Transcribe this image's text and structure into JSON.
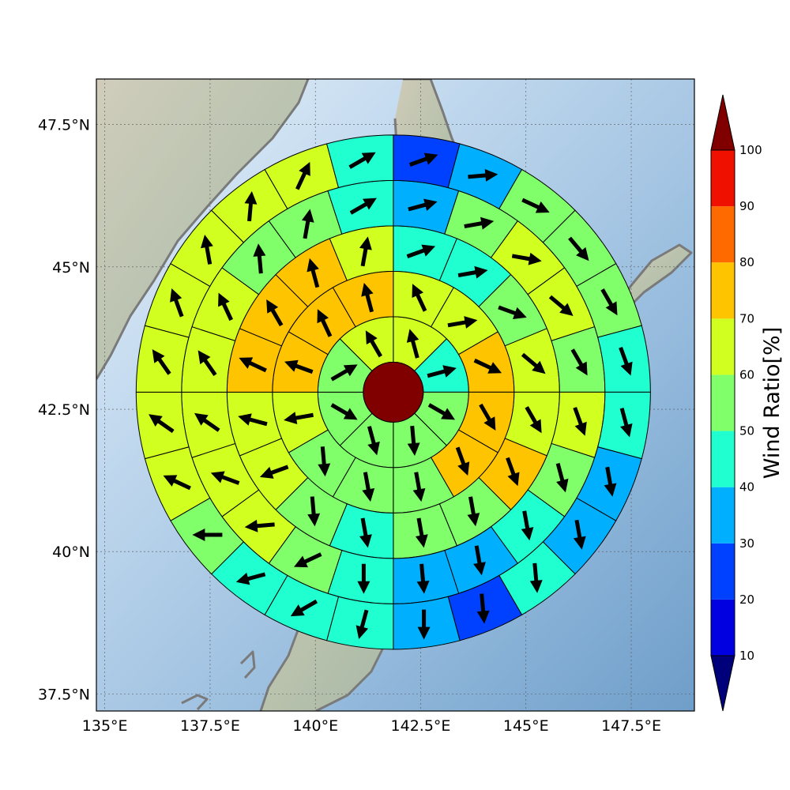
{
  "map": {
    "lon_ticks": [
      "135°E",
      "137.5°E",
      "140°E",
      "142.5°E",
      "145°E",
      "147.5°E"
    ],
    "lat_ticks": [
      "47.5°N",
      "45°N",
      "42.5°N",
      "40°N",
      "37.5°N"
    ],
    "lon_values": [
      135,
      137.5,
      140,
      142.5,
      145,
      147.5
    ],
    "lat_values": [
      47.5,
      45,
      42.5,
      40,
      37.5
    ],
    "extent": {
      "lon": [
        134.8,
        149.0
      ],
      "lat": [
        37.2,
        48.3
      ]
    },
    "center": {
      "lon": 141.85,
      "lat": 42.8
    }
  },
  "colorbar": {
    "label": "Wind Ratio[%]",
    "tick_labels": [
      "10",
      "20",
      "30",
      "40",
      "50",
      "60",
      "70",
      "80",
      "90",
      "100"
    ],
    "levels": [
      10,
      20,
      30,
      40,
      50,
      60,
      70,
      80,
      90,
      100
    ],
    "colors": [
      "#0000e0",
      "#0040ff",
      "#00b0ff",
      "#20ffd0",
      "#80ff6a",
      "#d0ff20",
      "#ffc400",
      "#ff6a00",
      "#f01000"
    ],
    "under_color": "#00007a",
    "over_color": "#800000"
  },
  "chart_data": {
    "type": "polar-sector-plot",
    "center_value_color": "#800000",
    "rings": [
      {
        "sectors": 8,
        "ratio_class": [
          60,
          40,
          50,
          50,
          50,
          50,
          50,
          60
        ],
        "wind_dir_deg": [
          -15,
          75,
          120,
          175,
          165,
          120,
          60,
          -30
        ]
      },
      {
        "sectors": 12,
        "ratio_class": [
          60,
          60,
          70,
          70,
          70,
          50,
          50,
          50,
          60,
          70,
          70,
          70
        ],
        "wind_dir_deg": [
          -25,
          80,
          115,
          150,
          160,
          170,
          170,
          175,
          -100,
          -70,
          -25,
          -15
        ]
      },
      {
        "sectors": 16,
        "ratio_class": [
          40,
          40,
          50,
          60,
          60,
          70,
          50,
          50,
          40,
          50,
          60,
          60,
          70,
          70,
          70,
          60
        ],
        "wind_dir_deg": [
          70,
          80,
          110,
          130,
          150,
          160,
          170,
          170,
          170,
          175,
          -110,
          -75,
          -65,
          -30,
          -15,
          10
        ]
      },
      {
        "sectors": 20,
        "ratio_class": [
          30,
          50,
          60,
          60,
          50,
          60,
          50,
          40,
          30,
          30,
          40,
          50,
          60,
          60,
          60,
          60,
          60,
          50,
          50,
          40
        ],
        "wind_dir_deg": [
          75,
          80,
          100,
          130,
          150,
          160,
          165,
          170,
          170,
          175,
          180,
          -115,
          -95,
          -70,
          -55,
          -35,
          -25,
          -5,
          10,
          60
        ]
      },
      {
        "sectors": 24,
        "ratio_class": [
          20,
          30,
          50,
          50,
          50,
          40,
          40,
          30,
          30,
          40,
          20,
          30,
          40,
          40,
          40,
          50,
          60,
          60,
          60,
          60,
          60,
          60,
          60,
          40
        ],
        "wind_dir_deg": [
          70,
          85,
          115,
          140,
          150,
          160,
          165,
          170,
          170,
          175,
          175,
          180,
          -165,
          -120,
          -105,
          -90,
          -65,
          -55,
          -35,
          -20,
          -10,
          5,
          25,
          60
        ]
      }
    ]
  }
}
